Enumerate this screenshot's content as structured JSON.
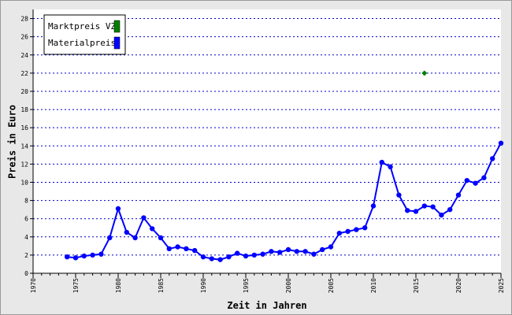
{
  "chart_data": {
    "type": "line",
    "x_label": "Zeit in Jahren",
    "y_label": "Preis in Euro",
    "x": [
      1974,
      1975,
      1976,
      1977,
      1978,
      1979,
      1980,
      1981,
      1982,
      1983,
      1984,
      1985,
      1986,
      1987,
      1988,
      1989,
      1990,
      1991,
      1992,
      1993,
      1994,
      1995,
      1996,
      1997,
      1998,
      1999,
      2000,
      2001,
      2002,
      2003,
      2004,
      2005,
      2006,
      2007,
      2008,
      2009,
      2010,
      2011,
      2012,
      2013,
      2014,
      2015,
      2016,
      2017,
      2018,
      2019,
      2020,
      2021,
      2022,
      2023,
      2024,
      2025
    ],
    "series": [
      {
        "name": "Marktpreis VZ",
        "color": "#008000",
        "marker": "diamond",
        "values": [
          null,
          null,
          null,
          null,
          null,
          null,
          null,
          null,
          null,
          null,
          null,
          null,
          null,
          null,
          null,
          null,
          null,
          null,
          null,
          null,
          null,
          null,
          null,
          null,
          null,
          null,
          null,
          null,
          null,
          null,
          null,
          null,
          null,
          null,
          null,
          null,
          null,
          null,
          null,
          null,
          null,
          null,
          22,
          null,
          null,
          null,
          null,
          null,
          null,
          null,
          null,
          null
        ]
      },
      {
        "name": "Materialpreis",
        "color": "#0000ff",
        "marker": "circle",
        "values": [
          1.8,
          1.7,
          1.9,
          2.0,
          2.1,
          3.9,
          7.1,
          4.5,
          3.9,
          6.1,
          4.9,
          3.9,
          2.7,
          2.9,
          2.7,
          2.5,
          1.8,
          1.6,
          1.5,
          1.8,
          2.2,
          1.9,
          2.0,
          2.1,
          2.4,
          2.3,
          2.6,
          2.4,
          2.4,
          2.1,
          2.6,
          2.9,
          4.4,
          4.6,
          4.8,
          5.0,
          7.4,
          12.2,
          11.7,
          8.6,
          6.9,
          6.8,
          7.4,
          7.3,
          6.4,
          7.0,
          8.6,
          10.2,
          9.9,
          10.5,
          12.6,
          14.3
        ]
      }
    ],
    "xlim": [
      1970,
      2025
    ],
    "xticks": [
      1970,
      1975,
      1980,
      1985,
      1990,
      1995,
      2000,
      2005,
      2010,
      2015,
      2020,
      2025
    ],
    "ylim": [
      0,
      29
    ],
    "yticks": [
      0,
      2,
      4,
      6,
      8,
      10,
      12,
      14,
      16,
      18,
      20,
      22,
      24,
      26,
      28
    ],
    "grid": true,
    "legend_position": "upper-left"
  }
}
